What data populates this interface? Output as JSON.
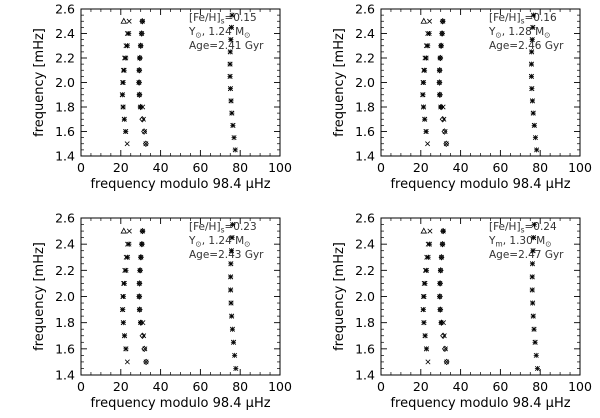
{
  "figure": {
    "description_units": {
      "x": "μHz",
      "y": "mHz"
    }
  },
  "chart_data": [
    {
      "type": "scatter",
      "panel": "top-left",
      "title": "",
      "xlabel": "frequency modulo 98.4 μHz",
      "ylabel": "frequency [mHz]",
      "xlim": [
        0,
        100
      ],
      "ylim": [
        1.4,
        2.6
      ],
      "xticks": [
        "0",
        "20",
        "40",
        "60",
        "80",
        "100"
      ],
      "yticks": [
        "1.4",
        "1.6",
        "1.8",
        "2.0",
        "2.2",
        "2.4",
        "2.6"
      ],
      "grid": false,
      "legend": "none",
      "annotation": {
        "line1_pre": "[Fe/H]",
        "line1_sub": "s",
        "line1_post": "=0.15",
        "line2_pre": "Y",
        "line2_sub": "⊙",
        "line2_post": ", 1.24 M",
        "line2_sub2": "⊙",
        "line3": "Age=2.41 Gyr"
      },
      "series": [
        {
          "marker": "triangle",
          "x": [
            21.5
          ],
          "y": [
            2.5
          ]
        },
        {
          "marker": "x",
          "x": [
            24.2,
            23.3,
            22.6,
            21.9,
            21.3,
            20.9,
            20.7,
            21.1,
            21.7,
            22.4,
            23.2
          ],
          "y": [
            2.5,
            2.4,
            2.3,
            2.2,
            2.1,
            2.0,
            1.9,
            1.8,
            1.7,
            1.6,
            1.5
          ]
        },
        {
          "marker": "star",
          "x": [
            24.0,
            23.3,
            22.5,
            21.7,
            21.2,
            20.9,
            21.2,
            21.8,
            22.5
          ],
          "y": [
            2.4,
            2.3,
            2.2,
            2.1,
            2.0,
            1.9,
            1.8,
            1.7,
            1.6
          ]
        },
        {
          "marker": "diamond",
          "x": [
            30.8,
            30.5,
            30.0,
            29.6,
            29.3,
            29.2,
            29.4,
            30.0,
            30.8,
            31.7,
            32.6
          ],
          "y": [
            2.5,
            2.4,
            2.3,
            2.2,
            2.1,
            2.0,
            1.9,
            1.8,
            1.7,
            1.6,
            1.5
          ]
        },
        {
          "marker": "star",
          "x": [
            30.9,
            30.5,
            30.0,
            29.5,
            29.2,
            29.1,
            29.3,
            29.8
          ],
          "y": [
            2.5,
            2.4,
            2.3,
            2.2,
            2.1,
            2.0,
            1.9,
            1.8
          ]
        },
        {
          "marker": "x",
          "x": [
            31.0,
            31.4,
            32.0,
            32.6
          ],
          "y": [
            1.8,
            1.7,
            1.6,
            1.5
          ]
        },
        {
          "marker": "star",
          "x": [
            75.9,
            75.6,
            75.3,
            75.0,
            74.9,
            74.9,
            75.1,
            75.4,
            75.8,
            76.3,
            76.9,
            77.5
          ],
          "y": [
            2.55,
            2.45,
            2.35,
            2.25,
            2.15,
            2.05,
            1.95,
            1.85,
            1.75,
            1.65,
            1.55,
            1.45
          ]
        },
        {
          "marker": "x",
          "x": [
            75.6,
            75.3,
            75.0,
            74.9,
            74.9,
            75.1,
            75.4,
            75.8,
            76.4
          ],
          "y": [
            2.45,
            2.35,
            2.25,
            2.15,
            2.05,
            1.95,
            1.85,
            1.75,
            1.65
          ]
        }
      ]
    },
    {
      "type": "scatter",
      "panel": "top-right",
      "title": "",
      "xlabel": "frequency modulo 98.4 μHz",
      "ylabel": "frequency [mHz]",
      "xlim": [
        0,
        100
      ],
      "ylim": [
        1.4,
        2.6
      ],
      "xticks": [
        "0",
        "20",
        "40",
        "60",
        "80",
        "100"
      ],
      "yticks": [
        "1.4",
        "1.6",
        "1.8",
        "2.0",
        "2.2",
        "2.4",
        "2.6"
      ],
      "grid": false,
      "legend": "none",
      "annotation": {
        "line1_pre": "[Fe/H]",
        "line1_sub": "s",
        "line1_post": "=0.16",
        "line2_pre": "Y",
        "line2_sub": "⊙",
        "line2_post": ", 1.28 M",
        "line2_sub2": "⊙",
        "line3": "Age=2.46 Gyr"
      },
      "series": [
        {
          "marker": "triangle",
          "x": [
            21.5
          ],
          "y": [
            2.5
          ]
        },
        {
          "marker": "x",
          "x": [
            24.4,
            23.5,
            22.8,
            22.1,
            21.5,
            21.1,
            20.9,
            21.3,
            21.9,
            22.6,
            23.4
          ],
          "y": [
            2.5,
            2.4,
            2.3,
            2.2,
            2.1,
            2.0,
            1.9,
            1.8,
            1.7,
            1.6,
            1.5
          ]
        },
        {
          "marker": "star",
          "x": [
            24.2,
            23.5,
            22.7,
            21.9,
            21.4,
            21.1,
            21.4,
            22.0,
            22.7
          ],
          "y": [
            2.4,
            2.3,
            2.2,
            2.1,
            2.0,
            1.9,
            1.8,
            1.7,
            1.6
          ]
        },
        {
          "marker": "diamond",
          "x": [
            31.0,
            30.7,
            30.2,
            29.8,
            29.5,
            29.4,
            29.6,
            30.2,
            31.0,
            31.9,
            32.8
          ],
          "y": [
            2.5,
            2.4,
            2.3,
            2.2,
            2.1,
            2.0,
            1.9,
            1.8,
            1.7,
            1.6,
            1.5
          ]
        },
        {
          "marker": "star",
          "x": [
            31.1,
            30.7,
            30.2,
            29.7,
            29.4,
            29.3,
            29.5,
            30.0
          ],
          "y": [
            2.5,
            2.4,
            2.3,
            2.2,
            2.1,
            2.0,
            1.9,
            1.8
          ]
        },
        {
          "marker": "x",
          "x": [
            31.2,
            31.6,
            32.2,
            32.8
          ],
          "y": [
            1.8,
            1.7,
            1.6,
            1.5
          ]
        },
        {
          "marker": "star",
          "x": [
            76.6,
            76.3,
            76.0,
            75.7,
            75.6,
            75.6,
            75.8,
            76.1,
            76.5,
            77.0,
            77.6,
            78.2
          ],
          "y": [
            2.55,
            2.45,
            2.35,
            2.25,
            2.15,
            2.05,
            1.95,
            1.85,
            1.75,
            1.65,
            1.55,
            1.45
          ]
        },
        {
          "marker": "x",
          "x": [
            76.3,
            76.0,
            75.7,
            75.6,
            75.6,
            75.8,
            76.1,
            76.5,
            77.1
          ],
          "y": [
            2.45,
            2.35,
            2.25,
            2.15,
            2.05,
            1.95,
            1.85,
            1.75,
            1.65
          ]
        }
      ]
    },
    {
      "type": "scatter",
      "panel": "bottom-left",
      "title": "",
      "xlabel": "frequency modulo 98.4 μHz",
      "ylabel": "frequency [mHz]",
      "xlim": [
        0,
        100
      ],
      "ylim": [
        1.4,
        2.6
      ],
      "xticks": [
        "0",
        "20",
        "40",
        "60",
        "80",
        "100"
      ],
      "yticks": [
        "1.4",
        "1.6",
        "1.8",
        "2.0",
        "2.2",
        "2.4",
        "2.6"
      ],
      "grid": false,
      "legend": "none",
      "annotation": {
        "line1_pre": "[Fe/H]",
        "line1_sub": "s",
        "line1_post": "=0.23",
        "line2_pre": "Y",
        "line2_sub": "⊙",
        "line2_post": ", 1.24 M",
        "line2_sub2": "⊙",
        "line3": "Age=2.43 Gyr"
      },
      "series": [
        {
          "marker": "triangle",
          "x": [
            21.5
          ],
          "y": [
            2.5
          ]
        },
        {
          "marker": "x",
          "x": [
            24.3,
            23.4,
            22.7,
            22.0,
            21.4,
            21.0,
            20.8,
            21.2,
            21.8,
            22.5,
            23.3
          ],
          "y": [
            2.5,
            2.4,
            2.3,
            2.2,
            2.1,
            2.0,
            1.9,
            1.8,
            1.7,
            1.6,
            1.5
          ]
        },
        {
          "marker": "star",
          "x": [
            24.1,
            23.4,
            22.6,
            21.8,
            21.3,
            21.0,
            21.3,
            21.9,
            22.6
          ],
          "y": [
            2.4,
            2.3,
            2.2,
            2.1,
            2.0,
            1.9,
            1.8,
            1.7,
            1.6
          ]
        },
        {
          "marker": "diamond",
          "x": [
            30.9,
            30.6,
            30.1,
            29.7,
            29.4,
            29.3,
            29.5,
            30.1,
            30.9,
            31.8,
            32.7
          ],
          "y": [
            2.5,
            2.4,
            2.3,
            2.2,
            2.1,
            2.0,
            1.9,
            1.8,
            1.7,
            1.6,
            1.5
          ]
        },
        {
          "marker": "star",
          "x": [
            31.0,
            30.6,
            30.1,
            29.6,
            29.3,
            29.2,
            29.4,
            29.9
          ],
          "y": [
            2.5,
            2.4,
            2.3,
            2.2,
            2.1,
            2.0,
            1.9,
            1.8
          ]
        },
        {
          "marker": "x",
          "x": [
            31.1,
            31.5,
            32.1,
            32.7
          ],
          "y": [
            1.8,
            1.7,
            1.6,
            1.5
          ]
        },
        {
          "marker": "star",
          "x": [
            76.2,
            75.9,
            75.6,
            75.3,
            75.2,
            75.2,
            75.4,
            75.7,
            76.1,
            76.6,
            77.2,
            77.8
          ],
          "y": [
            2.55,
            2.45,
            2.35,
            2.25,
            2.15,
            2.05,
            1.95,
            1.85,
            1.75,
            1.65,
            1.55,
            1.45
          ]
        },
        {
          "marker": "x",
          "x": [
            75.9,
            75.6,
            75.3,
            75.2,
            75.2,
            75.4,
            75.7,
            76.1,
            76.7
          ],
          "y": [
            2.45,
            2.35,
            2.25,
            2.15,
            2.05,
            1.95,
            1.85,
            1.75,
            1.65
          ]
        }
      ]
    },
    {
      "type": "scatter",
      "panel": "bottom-right",
      "title": "",
      "xlabel": "frequency modulo 98.4 μHz",
      "ylabel": "frequency [mHz]",
      "xlim": [
        0,
        100
      ],
      "ylim": [
        1.4,
        2.6
      ],
      "xticks": [
        "0",
        "20",
        "40",
        "60",
        "80",
        "100"
      ],
      "yticks": [
        "1.4",
        "1.6",
        "1.8",
        "2.0",
        "2.2",
        "2.4",
        "2.6"
      ],
      "grid": false,
      "legend": "none",
      "annotation": {
        "line1_pre": "[Fe/H]",
        "line1_sub": "s",
        "line1_post": "=0.24",
        "line2_pre": "Y",
        "line2_sub": "m",
        "line2_post": ", 1.30 M",
        "line2_sub2": "⊙",
        "line3": "Age=2.47 Gyr"
      },
      "series": [
        {
          "marker": "triangle",
          "x": [
            21.5
          ],
          "y": [
            2.5
          ]
        },
        {
          "marker": "x",
          "x": [
            24.6,
            23.7,
            23.0,
            22.3,
            21.7,
            21.3,
            21.1,
            21.5,
            22.1,
            22.8,
            23.6
          ],
          "y": [
            2.5,
            2.4,
            2.3,
            2.2,
            2.1,
            2.0,
            1.9,
            1.8,
            1.7,
            1.6,
            1.5
          ]
        },
        {
          "marker": "star",
          "x": [
            24.4,
            23.7,
            22.9,
            22.1,
            21.6,
            21.3,
            21.6,
            22.2,
            22.9
          ],
          "y": [
            2.4,
            2.3,
            2.2,
            2.1,
            2.0,
            1.9,
            1.8,
            1.7,
            1.6
          ]
        },
        {
          "marker": "diamond",
          "x": [
            31.2,
            30.9,
            30.4,
            30.0,
            29.7,
            29.6,
            29.8,
            30.4,
            31.2,
            32.1,
            33.0
          ],
          "y": [
            2.5,
            2.4,
            2.3,
            2.2,
            2.1,
            2.0,
            1.9,
            1.8,
            1.7,
            1.6,
            1.5
          ]
        },
        {
          "marker": "star",
          "x": [
            31.3,
            30.9,
            30.4,
            29.9,
            29.6,
            29.5,
            29.7,
            30.2
          ],
          "y": [
            2.5,
            2.4,
            2.3,
            2.2,
            2.1,
            2.0,
            1.9,
            1.8
          ]
        },
        {
          "marker": "x",
          "x": [
            31.4,
            31.8,
            32.4,
            33.0
          ],
          "y": [
            1.8,
            1.7,
            1.6,
            1.5
          ]
        },
        {
          "marker": "star",
          "x": [
            77.0,
            76.7,
            76.4,
            76.1,
            76.0,
            76.0,
            76.2,
            76.5,
            76.9,
            77.4,
            78.0,
            78.6
          ],
          "y": [
            2.55,
            2.45,
            2.35,
            2.25,
            2.15,
            2.05,
            1.95,
            1.85,
            1.75,
            1.65,
            1.55,
            1.45
          ]
        },
        {
          "marker": "x",
          "x": [
            76.7,
            76.4,
            76.1,
            76.0,
            76.0,
            76.2,
            76.5,
            76.9,
            77.5
          ],
          "y": [
            2.45,
            2.35,
            2.25,
            2.15,
            2.05,
            1.95,
            1.85,
            1.75,
            1.65
          ]
        }
      ]
    }
  ]
}
